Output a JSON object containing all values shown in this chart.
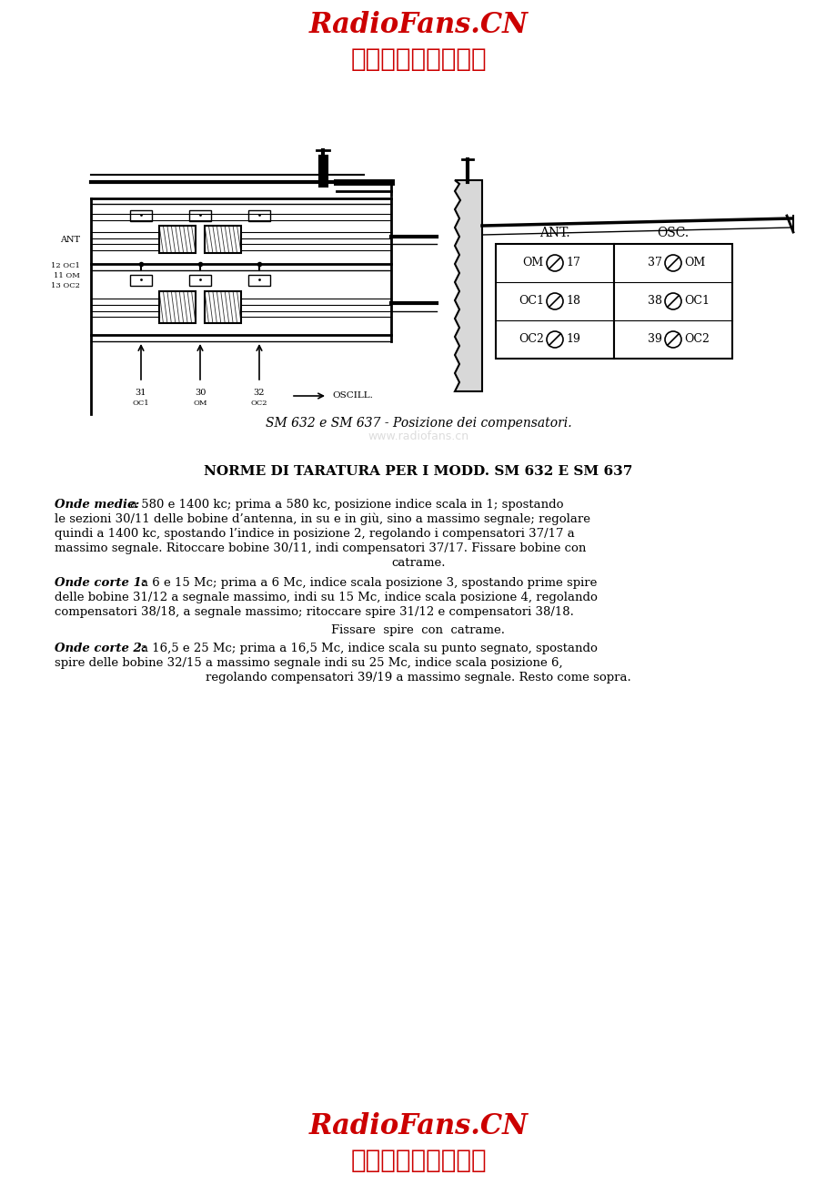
{
  "bg_color": "#ffffff",
  "header_line1": "RadioFans.CN",
  "header_line2": "收音机爱好者资料库",
  "footer_line1": "RadioFans.CN",
  "footer_line2": "收音机爱好者资料库",
  "header_color": "#cc0000",
  "diagram_caption": "SM 632 e SM 637 - Posizione dei compensatori.",
  "section_title": "NORME DI TARATURA PER I MODD. SM 632 E SM 637",
  "watermark_text": "www.radiofans.cn",
  "watermark_color": "#bbbbbb"
}
